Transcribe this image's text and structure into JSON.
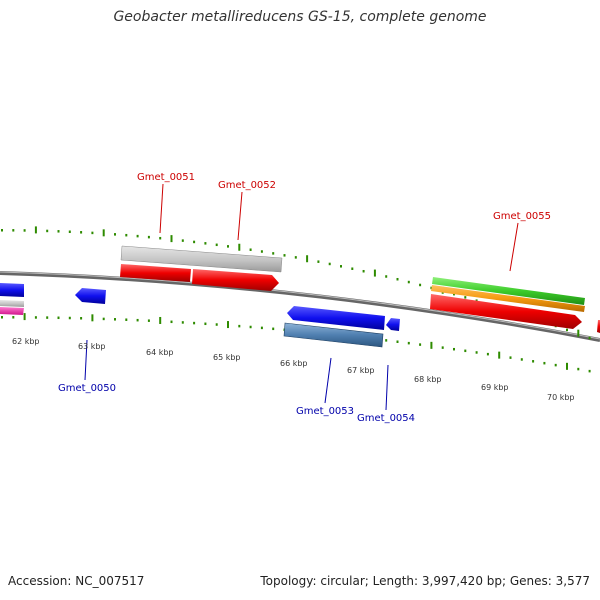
{
  "title": "Geobacter metallireducens GS-15, complete genome",
  "footer": {
    "accession": "Accession: NC_007517",
    "summary": "Topology: circular; Length: 3,997,420 bp; Genes: 3,577"
  },
  "colors": {
    "forward_label": "#cc0000",
    "reverse_label": "#0000aa",
    "tick_green": "#2e8b00",
    "backbone": "#777777"
  },
  "scale": {
    "unit": "kbp",
    "labels": [
      "62 kbp",
      "63 kbp",
      "64 kbp",
      "65 kbp",
      "66 kbp",
      "67 kbp",
      "68 kbp",
      "69 kbp",
      "70 kbp"
    ]
  },
  "gene_labels": [
    {
      "id": "Gmet_0051",
      "strand": "forward"
    },
    {
      "id": "Gmet_0052",
      "strand": "forward"
    },
    {
      "id": "Gmet_0055",
      "strand": "forward"
    },
    {
      "id": "Gmet_0050",
      "strand": "reverse"
    },
    {
      "id": "Gmet_0053",
      "strand": "reverse"
    },
    {
      "id": "Gmet_0054",
      "strand": "reverse"
    }
  ]
}
